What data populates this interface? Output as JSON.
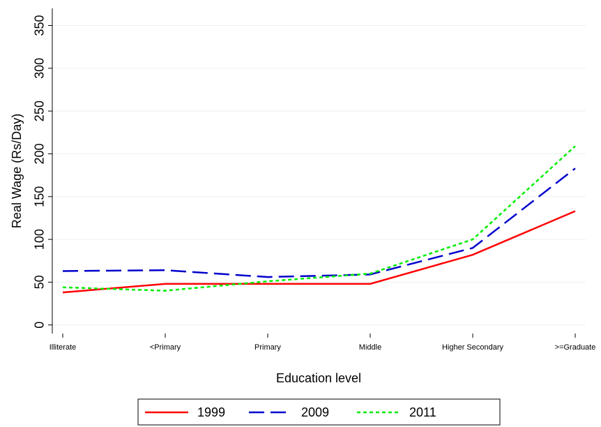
{
  "chart_data": {
    "type": "line",
    "xlabel": "Education level",
    "ylabel": "Real Wage (Rs/Day)",
    "categories": [
      "Illiterate",
      "<Primary",
      "Primary",
      "Middle",
      "Higher Secondary",
      ">=Graduate"
    ],
    "series": [
      {
        "name": "1999",
        "color": "#ff0000",
        "style": "solid",
        "values": [
          38,
          48,
          48,
          48,
          82,
          133
        ]
      },
      {
        "name": "2009",
        "color": "#0000cc",
        "style": "dashed",
        "values": [
          63,
          64,
          56,
          59,
          90,
          183
        ]
      },
      {
        "name": "2011",
        "color": "#00ee00",
        "style": "dotted",
        "values": [
          44,
          40,
          51,
          60,
          100,
          209
        ]
      }
    ],
    "ylim": [
      -10,
      370
    ],
    "yticks": [
      0,
      50,
      100,
      150,
      200,
      250,
      300,
      350
    ],
    "grid": true,
    "legend": "bottom"
  }
}
